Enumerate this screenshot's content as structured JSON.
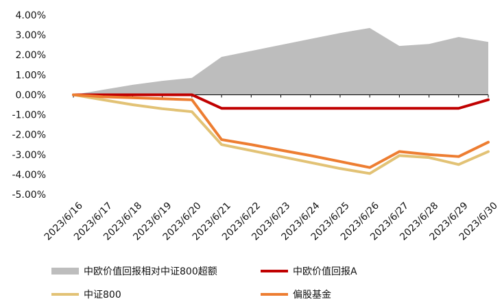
{
  "chart_data": {
    "type": "line",
    "categories": [
      "2023/6/16",
      "2023/6/17",
      "2023/6/18",
      "2023/6/19",
      "2023/6/20",
      "2023/6/21",
      "2023/6/22",
      "2023/6/23",
      "2023/6/24",
      "2023/6/25",
      "2023/6/26",
      "2023/6/27",
      "2023/6/28",
      "2023/6/29",
      "2023/6/30"
    ],
    "ylim": [
      -5,
      4
    ],
    "yticks": [
      4,
      3,
      2,
      1,
      0,
      -1,
      -2,
      -3,
      -4,
      -5
    ],
    "ytick_labels": [
      "4.00%",
      "3.00%",
      "2.00%",
      "1.00%",
      "0.00%",
      "-1.00%",
      "-2.00%",
      "-3.00%",
      "-4.00%",
      "-5.00%"
    ],
    "grid": false,
    "legend_position": "bottom",
    "series": [
      {
        "name": "中欧价值回报相对中证800超额",
        "kind": "area",
        "color": "#bdbdbd",
        "values": [
          0.0,
          0.25,
          0.5,
          0.7,
          0.85,
          1.9,
          2.2,
          2.5,
          2.8,
          3.1,
          3.35,
          2.45,
          2.55,
          2.9,
          2.65
        ]
      },
      {
        "name": "中欧价值回报A",
        "kind": "line",
        "color": "#c00000",
        "values": [
          0.0,
          0.0,
          0.0,
          0.0,
          0.0,
          -0.68,
          -0.68,
          -0.68,
          -0.68,
          -0.68,
          -0.68,
          -0.68,
          -0.68,
          -0.68,
          -0.25
        ]
      },
      {
        "name": "中证800",
        "kind": "line",
        "color": "#e2c275",
        "values": [
          0.0,
          -0.25,
          -0.5,
          -0.7,
          -0.85,
          -2.5,
          -2.8,
          -3.1,
          -3.4,
          -3.7,
          -3.95,
          -3.05,
          -3.15,
          -3.5,
          -2.85
        ]
      },
      {
        "name": "偏股基金",
        "kind": "line",
        "color": "#ed7d31",
        "values": [
          0.0,
          -0.1,
          -0.15,
          -0.2,
          -0.25,
          -2.25,
          -2.5,
          -2.78,
          -3.05,
          -3.35,
          -3.65,
          -2.85,
          -3.0,
          -3.1,
          -2.38
        ]
      }
    ]
  }
}
